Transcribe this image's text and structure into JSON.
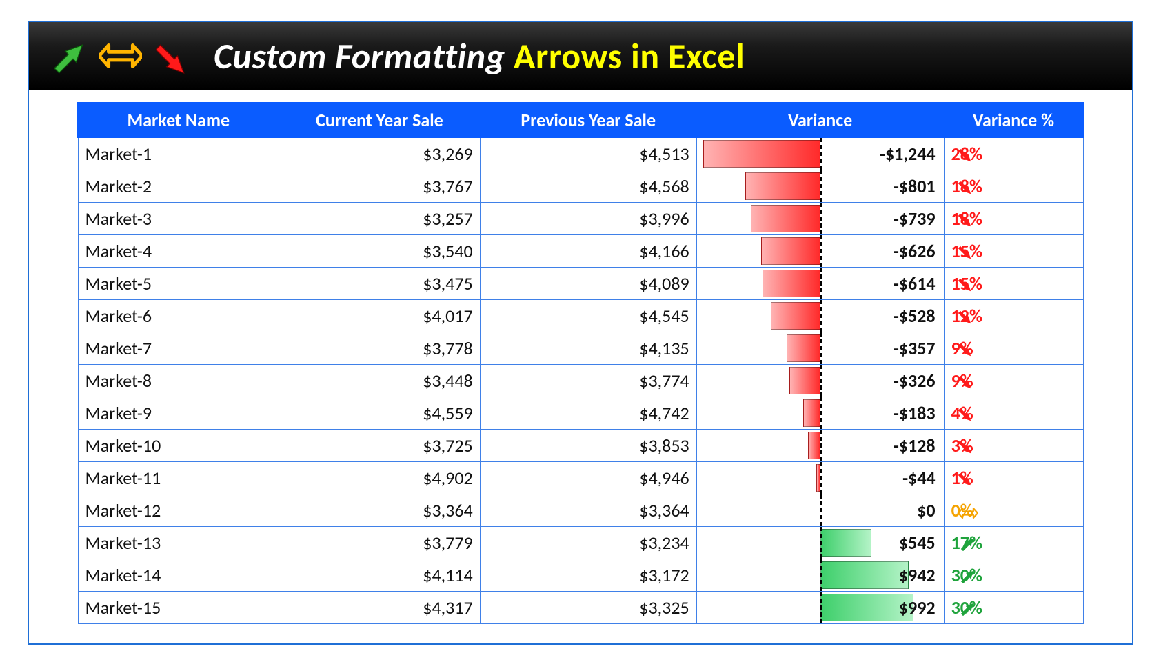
{
  "title": {
    "part1": "Custom Formatting",
    "part2": "Arrows in Excel",
    "bg_gradient": [
      "#3a3a3a",
      "#000000"
    ],
    "part1_color": "#ffffff",
    "part2_color": "#ffff00",
    "icons": {
      "up_color": "#3fbf3f",
      "flat_color": "#ffb400",
      "down_color": "#ff1a1a"
    }
  },
  "table": {
    "type": "table",
    "header_bg": "#0a5cff",
    "header_fg": "#ffffff",
    "border_color": "#3f80e8",
    "columns": [
      "Market Name",
      "Current Year Sale",
      "Previous Year Sale",
      "Variance",
      "Variance %"
    ],
    "variance_bar": {
      "max_abs": 1300,
      "neg_gradient": [
        "#ffb3b3",
        "#ff2a2a"
      ],
      "pos_gradient": [
        "#3ecf6b",
        "#b4f3c7"
      ],
      "center_line_color": "#000000"
    },
    "colors": {
      "neg": "#ff1a1a",
      "zero": "#f5a300",
      "pos": "#1fa33c",
      "text": "#111111"
    },
    "rows": [
      {
        "name": "Market-1",
        "cur": "$3,269",
        "prev": "$4,513",
        "var": -1244,
        "var_text": "-$1,244",
        "pct": "28%",
        "dir": "down"
      },
      {
        "name": "Market-2",
        "cur": "$3,767",
        "prev": "$4,568",
        "var": -801,
        "var_text": "-$801",
        "pct": "18%",
        "dir": "down"
      },
      {
        "name": "Market-3",
        "cur": "$3,257",
        "prev": "$3,996",
        "var": -739,
        "var_text": "-$739",
        "pct": "18%",
        "dir": "down"
      },
      {
        "name": "Market-4",
        "cur": "$3,540",
        "prev": "$4,166",
        "var": -626,
        "var_text": "-$626",
        "pct": "15%",
        "dir": "down"
      },
      {
        "name": "Market-5",
        "cur": "$3,475",
        "prev": "$4,089",
        "var": -614,
        "var_text": "-$614",
        "pct": "15%",
        "dir": "down"
      },
      {
        "name": "Market-6",
        "cur": "$4,017",
        "prev": "$4,545",
        "var": -528,
        "var_text": "-$528",
        "pct": "12%",
        "dir": "down"
      },
      {
        "name": "Market-7",
        "cur": "$3,778",
        "prev": "$4,135",
        "var": -357,
        "var_text": "-$357",
        "pct": "9%",
        "dir": "down"
      },
      {
        "name": "Market-8",
        "cur": "$3,448",
        "prev": "$3,774",
        "var": -326,
        "var_text": "-$326",
        "pct": "9%",
        "dir": "down"
      },
      {
        "name": "Market-9",
        "cur": "$4,559",
        "prev": "$4,742",
        "var": -183,
        "var_text": "-$183",
        "pct": "4%",
        "dir": "down"
      },
      {
        "name": "Market-10",
        "cur": "$3,725",
        "prev": "$3,853",
        "var": -128,
        "var_text": "-$128",
        "pct": "3%",
        "dir": "down"
      },
      {
        "name": "Market-11",
        "cur": "$4,902",
        "prev": "$4,946",
        "var": -44,
        "var_text": "-$44",
        "pct": "1%",
        "dir": "down"
      },
      {
        "name": "Market-12",
        "cur": "$3,364",
        "prev": "$3,364",
        "var": 0,
        "var_text": "$0",
        "pct": "0%",
        "dir": "flat"
      },
      {
        "name": "Market-13",
        "cur": "$3,779",
        "prev": "$3,234",
        "var": 545,
        "var_text": "$545",
        "pct": "17%",
        "dir": "up"
      },
      {
        "name": "Market-14",
        "cur": "$4,114",
        "prev": "$3,172",
        "var": 942,
        "var_text": "$942",
        "pct": "30%",
        "dir": "up"
      },
      {
        "name": "Market-15",
        "cur": "$4,317",
        "prev": "$3,325",
        "var": 992,
        "var_text": "$992",
        "pct": "30%",
        "dir": "up"
      }
    ]
  }
}
